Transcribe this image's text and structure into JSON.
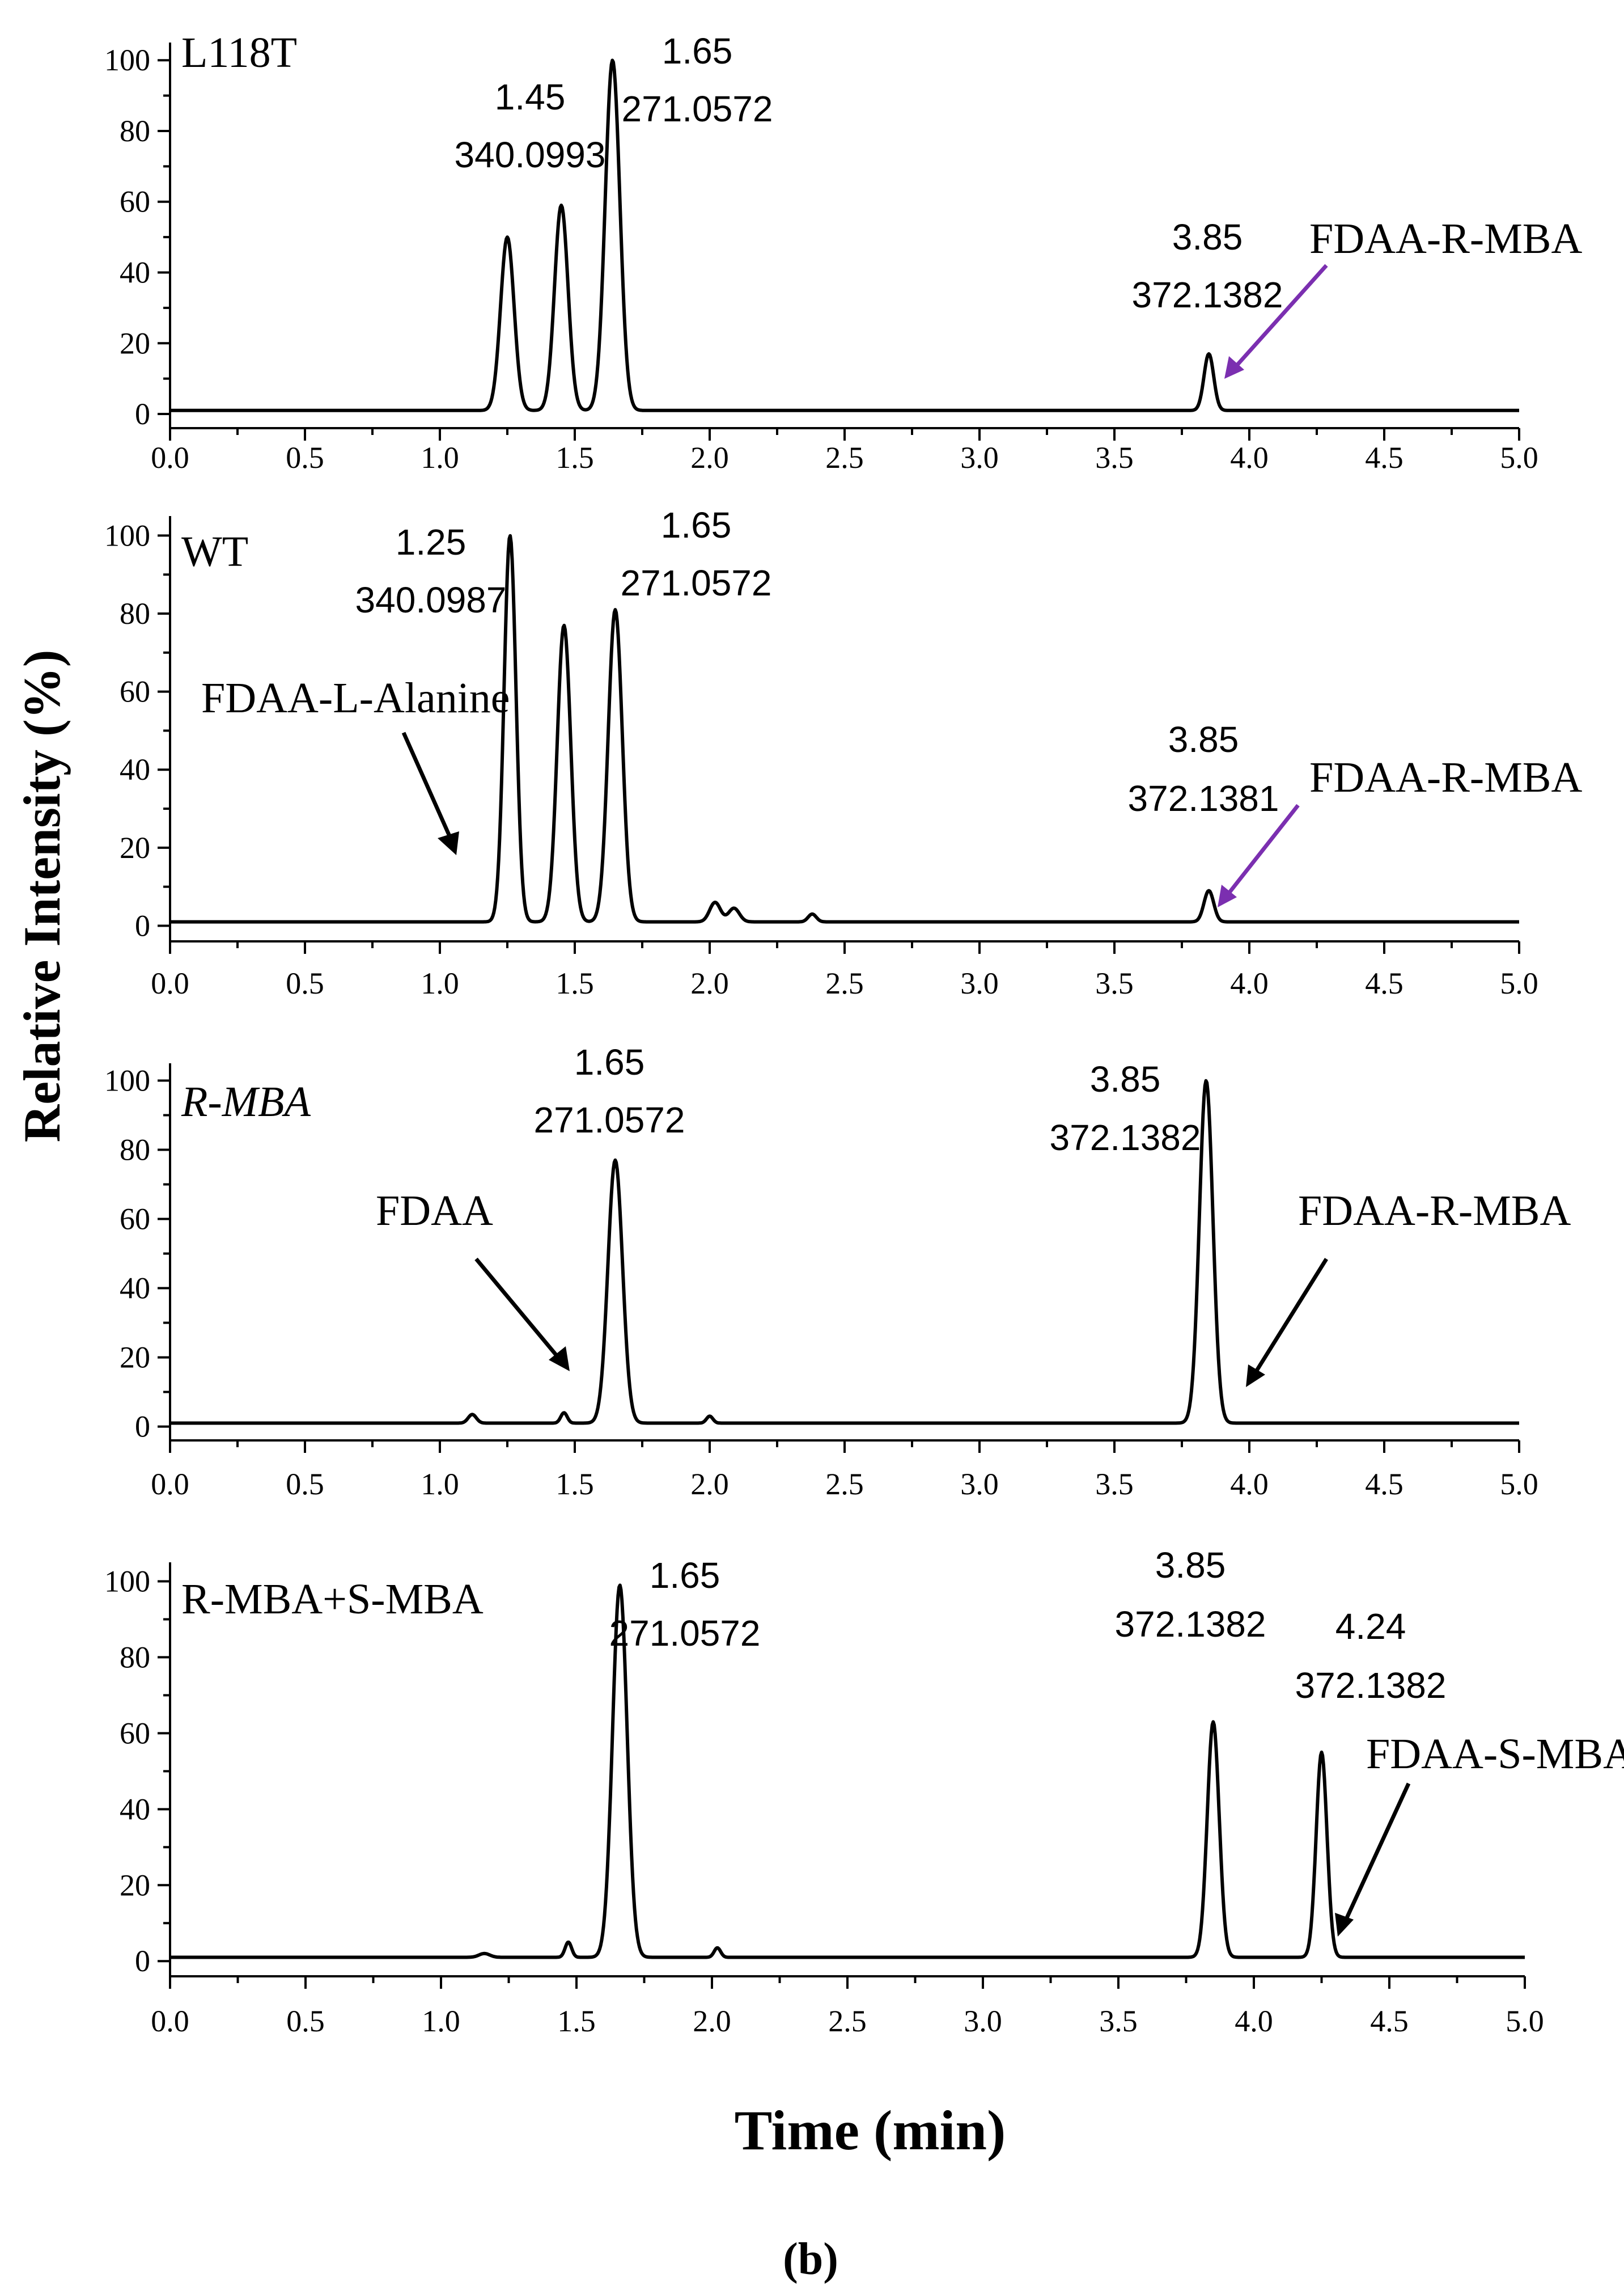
{
  "figure": {
    "ylabel": "Relative Intensity (%)",
    "xlabel": "Time (min)",
    "caption": "(b)"
  },
  "chart_data": [
    {
      "type": "line",
      "panel_label": "L118T",
      "xlim": [
        0.0,
        5.0
      ],
      "ylim": [
        0,
        100
      ],
      "xticks": [
        "0.0",
        "0.5",
        "1.0",
        "1.5",
        "2.0",
        "2.5",
        "3.0",
        "3.5",
        "4.0",
        "4.5",
        "5.0"
      ],
      "yticks": [
        "0",
        "20",
        "40",
        "60",
        "80",
        "100"
      ],
      "baseline": 1,
      "peaks": [
        {
          "rt": 1.25,
          "height": 49,
          "width": 0.025
        },
        {
          "rt": 1.45,
          "height": 58,
          "width": 0.025
        },
        {
          "rt": 1.64,
          "height": 99,
          "width": 0.027
        },
        {
          "rt": 3.85,
          "height": 16,
          "width": 0.018
        }
      ],
      "annotations": [
        {
          "lines": [
            "1.45",
            "340.0993"
          ]
        },
        {
          "lines": [
            "1.65",
            "271.0572"
          ]
        },
        {
          "lines": [
            "3.85",
            "372.1382"
          ]
        }
      ],
      "arrows": [
        {
          "label": "FDAA-R-MBA",
          "color": "#7B2FB0"
        }
      ]
    },
    {
      "type": "line",
      "panel_label": "WT",
      "xlim": [
        0.0,
        5.0
      ],
      "ylim": [
        0,
        100
      ],
      "xticks": [
        "0.0",
        "0.5",
        "1.0",
        "1.5",
        "2.0",
        "2.5",
        "3.0",
        "3.5",
        "4.0",
        "4.5",
        "5.0"
      ],
      "yticks": [
        "0",
        "20",
        "40",
        "60",
        "80",
        "100"
      ],
      "baseline": 1,
      "peaks": [
        {
          "rt": 1.26,
          "height": 99,
          "width": 0.022
        },
        {
          "rt": 1.46,
          "height": 76,
          "width": 0.025
        },
        {
          "rt": 1.65,
          "height": 80,
          "width": 0.026
        },
        {
          "rt": 2.02,
          "height": 5,
          "width": 0.02
        },
        {
          "rt": 2.09,
          "height": 3.5,
          "width": 0.02
        },
        {
          "rt": 2.38,
          "height": 2,
          "width": 0.015
        },
        {
          "rt": 3.85,
          "height": 8,
          "width": 0.018
        }
      ],
      "annotations": [
        {
          "lines": [
            "1.25",
            "340.0987"
          ]
        },
        {
          "lines": [
            "1.65",
            "271.0572"
          ]
        },
        {
          "lines": [
            "3.85",
            "372.1381"
          ]
        }
      ],
      "arrows": [
        {
          "label": "FDAA-L-Alanine",
          "color": "#000000"
        },
        {
          "label": "FDAA-R-MBA",
          "color": "#7B2FB0"
        }
      ]
    },
    {
      "type": "line",
      "panel_label": "R-MBA",
      "xlim": [
        0.0,
        5.0
      ],
      "ylim": [
        0,
        100
      ],
      "xticks": [
        "0.0",
        "0.5",
        "1.0",
        "1.5",
        "2.0",
        "2.5",
        "3.0",
        "3.5",
        "4.0",
        "4.5",
        "5.0"
      ],
      "yticks": [
        "0",
        "20",
        "40",
        "60",
        "80",
        "100"
      ],
      "baseline": 1,
      "peaks": [
        {
          "rt": 1.12,
          "height": 2.5,
          "width": 0.015
        },
        {
          "rt": 1.46,
          "height": 3,
          "width": 0.012
        },
        {
          "rt": 1.65,
          "height": 76,
          "width": 0.027
        },
        {
          "rt": 2.0,
          "height": 2,
          "width": 0.012
        },
        {
          "rt": 3.84,
          "height": 99,
          "width": 0.025
        }
      ],
      "annotations": [
        {
          "lines": [
            "1.65",
            "271.0572"
          ]
        },
        {
          "lines": [
            "3.85",
            "372.1382"
          ]
        }
      ],
      "arrows": [
        {
          "label": "FDAA",
          "color": "#000000"
        },
        {
          "label": "FDAA-R-MBA",
          "color": "#000000"
        }
      ]
    },
    {
      "type": "line",
      "panel_label": "R-MBA+S-MBA",
      "xlim": [
        0.0,
        5.0
      ],
      "ylim": [
        0,
        100
      ],
      "xticks": [
        "0.0",
        "0.5",
        "1.0",
        "1.5",
        "2.0",
        "2.5",
        "3.0",
        "3.5",
        "4.0",
        "4.5",
        "5.0"
      ],
      "yticks": [
        "0",
        "20",
        "40",
        "60",
        "80",
        "100"
      ],
      "baseline": 1,
      "peaks": [
        {
          "rt": 1.16,
          "height": 1,
          "width": 0.02
        },
        {
          "rt": 1.47,
          "height": 4,
          "width": 0.012
        },
        {
          "rt": 1.66,
          "height": 98,
          "width": 0.027
        },
        {
          "rt": 2.02,
          "height": 2.5,
          "width": 0.012
        },
        {
          "rt": 3.85,
          "height": 62,
          "width": 0.022
        },
        {
          "rt": 4.25,
          "height": 54,
          "width": 0.02
        }
      ],
      "annotations": [
        {
          "lines": [
            "1.65",
            "271.0572"
          ]
        },
        {
          "lines": [
            "3.85",
            "372.1382"
          ]
        },
        {
          "lines": [
            "4.24",
            "372.1382"
          ]
        }
      ],
      "arrows": [
        {
          "label": "FDAA-S-MBA",
          "color": "#000000"
        }
      ]
    }
  ]
}
